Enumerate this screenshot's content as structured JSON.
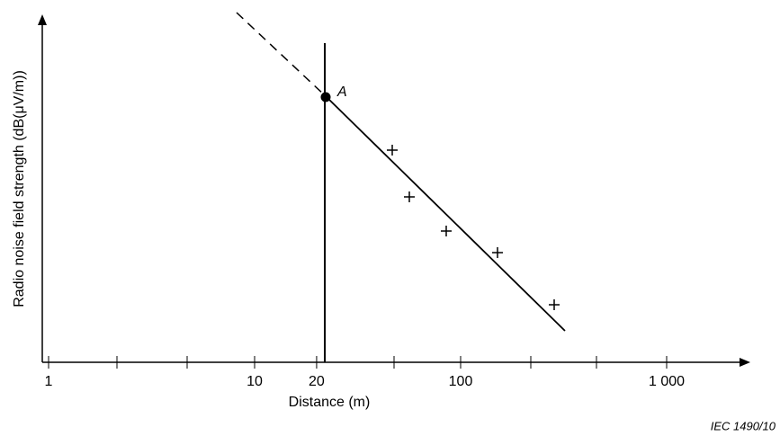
{
  "chart_data": {
    "type": "scatter",
    "title": "Radio noise field strength   (dB(μV/m))",
    "x_label": "Distance   (m)",
    "point_label": "A",
    "figure_ref": "IEC  1490/10",
    "x_log": true,
    "xlim": [
      1,
      2000
    ],
    "xticks": [
      1,
      10,
      20,
      100,
      {
        "value": 1000,
        "label": "1 000"
      }
    ]
  }
}
